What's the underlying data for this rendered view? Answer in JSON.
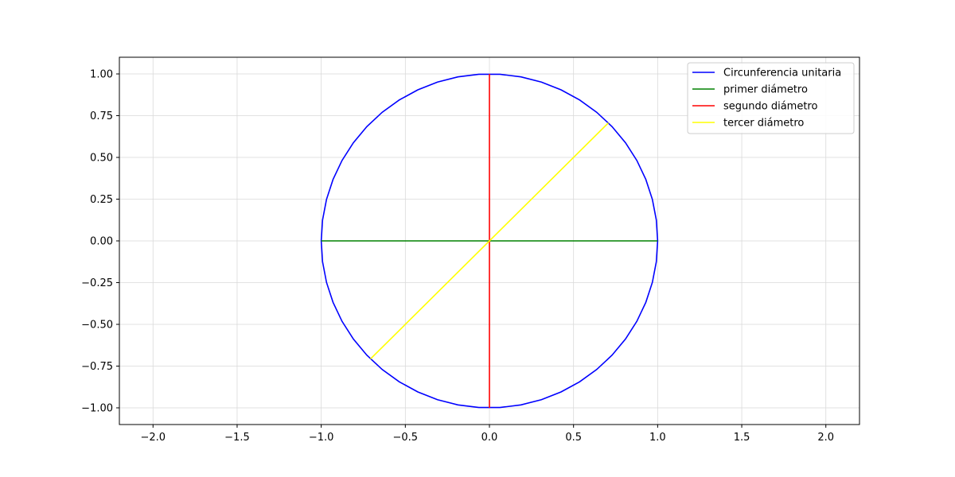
{
  "chart_data": {
    "type": "line",
    "title": "",
    "xlabel": "",
    "ylabel": "",
    "xlim": [
      -2.2,
      2.2
    ],
    "ylim": [
      -1.1,
      1.1
    ],
    "xticks": [
      -2.0,
      -1.5,
      -1.0,
      -0.5,
      0.0,
      0.5,
      1.0,
      1.5,
      2.0
    ],
    "xtick_labels": [
      "−2.0",
      "−1.5",
      "−1.0",
      "−0.5",
      "0.0",
      "0.5",
      "1.0",
      "1.5",
      "2.0"
    ],
    "yticks": [
      1.0,
      0.75,
      0.5,
      0.25,
      0.0,
      -0.25,
      -0.5,
      -0.75,
      -1.0
    ],
    "ytick_labels": [
      "1.00",
      "0.75",
      "0.50",
      "0.25",
      "0.00",
      "−0.25",
      "−0.50",
      "−0.75",
      "−1.00"
    ],
    "grid": true,
    "legend_position": "top-right",
    "series": [
      {
        "name": "Circunferencia unitaria",
        "color": "#0000ff",
        "kind": "circle",
        "center": [
          0,
          0
        ],
        "radius": 1
      },
      {
        "name": "primer diámetro",
        "color": "#008000",
        "kind": "segment",
        "x": [
          -1,
          1
        ],
        "y": [
          0,
          0
        ]
      },
      {
        "name": "segundo diámetro",
        "color": "#ff0000",
        "kind": "segment",
        "x": [
          0,
          0
        ],
        "y": [
          -1,
          1
        ]
      },
      {
        "name": "tercer diámetro",
        "color": "#ffff00",
        "kind": "segment",
        "x": [
          -0.7071,
          0.7071
        ],
        "y": [
          -0.7071,
          0.7071
        ]
      }
    ]
  }
}
